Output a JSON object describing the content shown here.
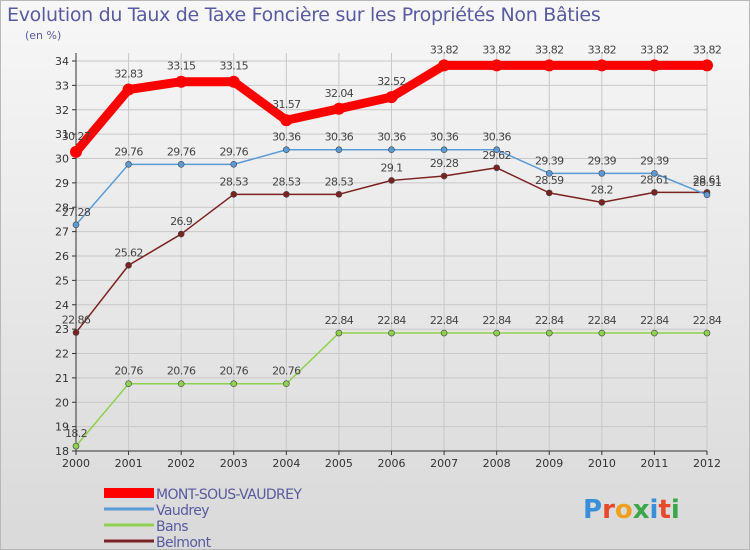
{
  "chart_data": {
    "type": "line",
    "title": "Evolution du Taux de Taxe Foncière sur les Propriétés Non Bâties",
    "ylabel": "(en %)",
    "xlabel": "",
    "x": [
      "2000",
      "2001",
      "2002",
      "2003",
      "2004",
      "2005",
      "2006",
      "2007",
      "2008",
      "2009",
      "2010",
      "2011",
      "2012"
    ],
    "ylim": [
      18,
      34
    ],
    "yticks": [
      18,
      19,
      20,
      21,
      22,
      23,
      24,
      25,
      26,
      27,
      28,
      29,
      30,
      31,
      32,
      33,
      34
    ],
    "legend_position": "bottom-left",
    "series": [
      {
        "name": "MONT-SOUS-VAUDREY",
        "color": "#ff0000",
        "values": [
          30.27,
          32.83,
          33.15,
          33.15,
          31.57,
          32.04,
          32.52,
          33.82,
          33.82,
          33.82,
          33.82,
          33.82,
          33.82
        ],
        "labels": [
          "30.27",
          "32.83",
          "33.15",
          "33.15",
          "31.57",
          "32.04",
          "32.52",
          "33.82",
          "33.82",
          "33.82",
          "33.82",
          "33.82",
          "33.82"
        ]
      },
      {
        "name": "Vaudrey",
        "color": "#5b9bd5",
        "values": [
          27.28,
          29.76,
          29.76,
          29.76,
          30.36,
          30.36,
          30.36,
          30.36,
          30.36,
          29.39,
          29.39,
          29.39,
          28.51
        ],
        "labels": [
          "27.28",
          "29.76",
          "29.76",
          "29.76",
          "30.36",
          "30.36",
          "30.36",
          "30.36",
          "30.36",
          "29.39",
          "29.39",
          "29.39",
          "28.51"
        ]
      },
      {
        "name": "Bans",
        "color": "#8fd14f",
        "values": [
          18.2,
          20.76,
          20.76,
          20.76,
          20.76,
          22.84,
          22.84,
          22.84,
          22.84,
          22.84,
          22.84,
          22.84,
          22.84
        ],
        "labels": [
          "18.2",
          "20.76",
          "20.76",
          "20.76",
          "20.76",
          "22.84",
          "22.84",
          "22.84",
          "22.84",
          "22.84",
          "22.84",
          "22.84",
          "22.84"
        ]
      },
      {
        "name": "Belmont",
        "color": "#7b2222",
        "values": [
          22.86,
          25.62,
          26.9,
          28.53,
          28.53,
          28.53,
          29.1,
          29.28,
          29.62,
          28.59,
          28.2,
          28.61,
          28.61
        ],
        "labels": [
          "22.86",
          "25.62",
          "26.9",
          "28.53",
          "28.53",
          "28.53",
          "29.1",
          "29.28",
          "29.62",
          "28.59",
          "28.2",
          "28.61",
          "28.61"
        ]
      }
    ]
  },
  "logo": {
    "text": "Proxiti"
  }
}
